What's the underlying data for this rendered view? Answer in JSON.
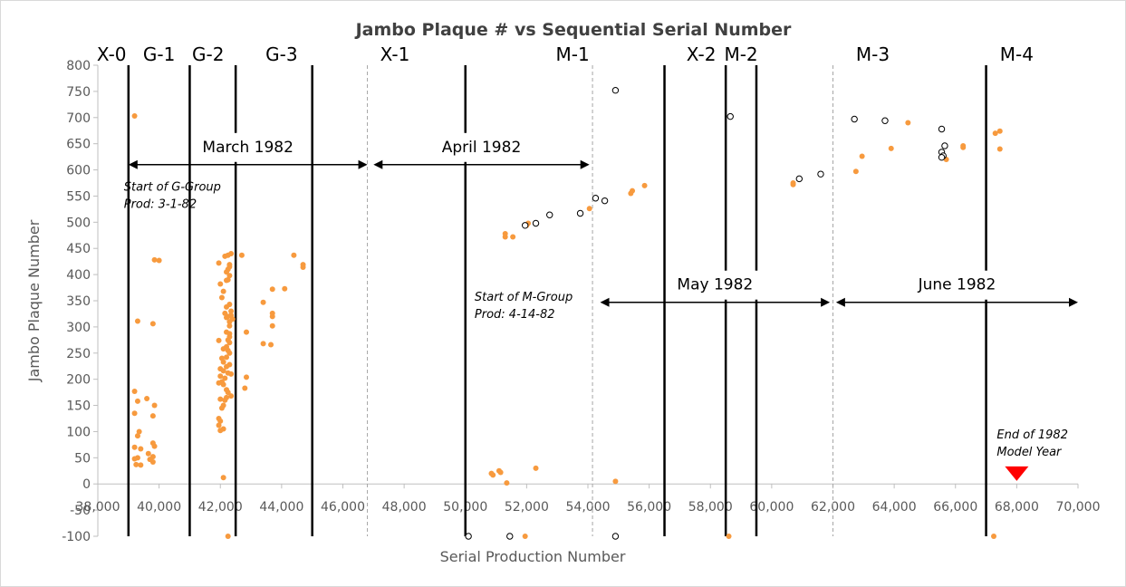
{
  "chart_data": {
    "type": "scatter",
    "title": "Jambo Plaque # vs Sequential Serial Number",
    "xlabel": "Serial Production Number",
    "ylabel": "Jambo Plaque Number",
    "xlim": [
      38000,
      70000
    ],
    "ylim": [
      -100,
      800
    ],
    "x_ticks": [
      38000,
      40000,
      42000,
      44000,
      46000,
      48000,
      50000,
      52000,
      54000,
      56000,
      58000,
      60000,
      62000,
      64000,
      66000,
      68000,
      70000
    ],
    "x_tick_labels": [
      "38,000",
      "40,000",
      "42,000",
      "44,000",
      "46,000",
      "48,000",
      "50,000",
      "52,000",
      "54,000",
      "56,000",
      "58,000",
      "60,000",
      "62,000",
      "64,000",
      "66,000",
      "68,000",
      "70,000"
    ],
    "y_ticks": [
      -100,
      -50,
      0,
      50,
      100,
      150,
      200,
      250,
      300,
      350,
      400,
      450,
      500,
      550,
      600,
      650,
      700,
      750,
      800
    ],
    "y_tick_labels": [
      "-100",
      "-50",
      "0",
      "50",
      "100",
      "150",
      "200",
      "250",
      "300",
      "350",
      "400",
      "450",
      "500",
      "550",
      "600",
      "650",
      "700",
      "750",
      "800"
    ],
    "grid": false,
    "series": [
      {
        "marker": "filled-circle",
        "color": "#f79a3e",
        "points": [
          [
            39200,
            703
          ],
          [
            39850,
            428
          ],
          [
            40000,
            427
          ],
          [
            39300,
            311
          ],
          [
            39800,
            306
          ],
          [
            39200,
            177
          ],
          [
            39300,
            158
          ],
          [
            39600,
            163
          ],
          [
            39850,
            150
          ],
          [
            39200,
            135
          ],
          [
            39800,
            130
          ],
          [
            39350,
            100
          ],
          [
            39300,
            92
          ],
          [
            39800,
            78
          ],
          [
            39850,
            72
          ],
          [
            39200,
            70
          ],
          [
            39400,
            67
          ],
          [
            39650,
            58
          ],
          [
            39800,
            52
          ],
          [
            39300,
            50
          ],
          [
            39200,
            48
          ],
          [
            39700,
            47
          ],
          [
            39800,
            42
          ],
          [
            39250,
            37
          ],
          [
            39400,
            36
          ],
          [
            42350,
            440
          ],
          [
            42250,
            437
          ],
          [
            42150,
            435
          ],
          [
            42300,
            419
          ],
          [
            42300,
            415
          ],
          [
            41950,
            422
          ],
          [
            42250,
            410
          ],
          [
            42200,
            405
          ],
          [
            42300,
            398
          ],
          [
            42250,
            390
          ],
          [
            42200,
            389
          ],
          [
            42000,
            382
          ],
          [
            42100,
            368
          ],
          [
            42050,
            356
          ],
          [
            42300,
            343
          ],
          [
            42200,
            338
          ],
          [
            42350,
            330
          ],
          [
            42150,
            326
          ],
          [
            42350,
            322
          ],
          [
            42250,
            320
          ],
          [
            42200,
            318
          ],
          [
            42400,
            315
          ],
          [
            42300,
            310
          ],
          [
            42300,
            302
          ],
          [
            42200,
            290
          ],
          [
            42300,
            287
          ],
          [
            42300,
            281
          ],
          [
            42250,
            275
          ],
          [
            41950,
            274
          ],
          [
            42300,
            270
          ],
          [
            42200,
            262
          ],
          [
            42100,
            258
          ],
          [
            42250,
            255
          ],
          [
            42300,
            250
          ],
          [
            42200,
            242
          ],
          [
            42050,
            240
          ],
          [
            42100,
            233
          ],
          [
            42300,
            228
          ],
          [
            42200,
            224
          ],
          [
            42000,
            220
          ],
          [
            42100,
            216
          ],
          [
            42250,
            212
          ],
          [
            42350,
            210
          ],
          [
            42000,
            206
          ],
          [
            42150,
            202
          ],
          [
            42050,
            195
          ],
          [
            41950,
            193
          ],
          [
            42100,
            190
          ],
          [
            42200,
            180
          ],
          [
            42250,
            175
          ],
          [
            42350,
            168
          ],
          [
            42200,
            165
          ],
          [
            42000,
            162
          ],
          [
            42150,
            160
          ],
          [
            42100,
            150
          ],
          [
            42050,
            145
          ],
          [
            41950,
            125
          ],
          [
            42000,
            120
          ],
          [
            41950,
            112
          ],
          [
            42100,
            105
          ],
          [
            42000,
            102
          ],
          [
            42100,
            12
          ],
          [
            42250,
            -100
          ],
          [
            42700,
            437
          ],
          [
            43400,
            347
          ],
          [
            43700,
            372
          ],
          [
            42850,
            290
          ],
          [
            43700,
            326
          ],
          [
            43700,
            320
          ],
          [
            43700,
            302
          ],
          [
            43400,
            268
          ],
          [
            43650,
            266
          ],
          [
            42850,
            204
          ],
          [
            42800,
            183
          ],
          [
            44100,
            373
          ],
          [
            44400,
            437
          ],
          [
            44700,
            419
          ],
          [
            44700,
            414
          ],
          [
            51300,
            478
          ],
          [
            51300,
            472
          ],
          [
            51550,
            472
          ],
          [
            52050,
            498
          ],
          [
            52000,
            494
          ],
          [
            54050,
            526
          ],
          [
            55400,
            555
          ],
          [
            55450,
            560
          ],
          [
            55850,
            570
          ],
          [
            50850,
            20
          ],
          [
            50900,
            17
          ],
          [
            51100,
            25
          ],
          [
            51150,
            22
          ],
          [
            51350,
            2
          ],
          [
            52300,
            30
          ],
          [
            54900,
            5
          ],
          [
            51950,
            -100
          ],
          [
            58600,
            -100
          ],
          [
            60700,
            572
          ],
          [
            60700,
            575
          ],
          [
            62750,
            597
          ],
          [
            62950,
            626
          ],
          [
            63900,
            641
          ],
          [
            64450,
            690
          ],
          [
            65700,
            620
          ],
          [
            66250,
            643
          ],
          [
            66250,
            646
          ],
          [
            67300,
            670
          ],
          [
            67450,
            674
          ],
          [
            67450,
            640
          ],
          [
            67250,
            -100
          ]
        ]
      },
      {
        "marker": "open-circle",
        "color": "#000000",
        "points": [
          [
            54900,
            752
          ],
          [
            58650,
            702
          ],
          [
            62700,
            697
          ],
          [
            63700,
            694
          ],
          [
            65550,
            678
          ],
          [
            65650,
            646
          ],
          [
            65550,
            634
          ],
          [
            65600,
            627
          ],
          [
            65550,
            624
          ],
          [
            61600,
            592
          ],
          [
            60900,
            583
          ],
          [
            54250,
            546
          ],
          [
            54550,
            541
          ],
          [
            53750,
            517
          ],
          [
            52750,
            514
          ],
          [
            52300,
            498
          ],
          [
            51950,
            494
          ],
          [
            50100,
            -100
          ],
          [
            51450,
            -100
          ],
          [
            54900,
            -100
          ]
        ]
      }
    ],
    "group_lines": [
      {
        "x": 39000,
        "style": "solid"
      },
      {
        "x": 41000,
        "style": "solid"
      },
      {
        "x": 42500,
        "style": "solid"
      },
      {
        "x": 45000,
        "style": "solid"
      },
      {
        "x": 46800,
        "style": "dashed"
      },
      {
        "x": 50000,
        "style": "solid"
      },
      {
        "x": 54150,
        "style": "dashed"
      },
      {
        "x": 56500,
        "style": "solid"
      },
      {
        "x": 58500,
        "style": "solid"
      },
      {
        "x": 59500,
        "style": "solid"
      },
      {
        "x": 62000,
        "style": "dashed"
      },
      {
        "x": 67000,
        "style": "solid"
      }
    ],
    "group_labels": [
      {
        "text": "X-0",
        "x": 38450
      },
      {
        "text": "G-1",
        "x": 40000
      },
      {
        "text": "G-2",
        "x": 41600
      },
      {
        "text": "G-3",
        "x": 44000
      },
      {
        "text": "X-1",
        "x": 47700
      },
      {
        "text": "M-1",
        "x": 53500
      },
      {
        "text": "X-2",
        "x": 57700
      },
      {
        "text": "M-2",
        "x": 59000
      },
      {
        "text": "M-3",
        "x": 63300
      },
      {
        "text": "M-4",
        "x": 68000
      }
    ],
    "month_ranges": [
      {
        "label": "March 1982",
        "x_start": 39000,
        "x_end": 46800,
        "y": 610
      },
      {
        "label": "April 1982",
        "x_start": 47000,
        "x_end": 54050,
        "y": 610
      },
      {
        "label": "May 1982",
        "x_start": 54400,
        "x_end": 61900,
        "y": 347
      },
      {
        "label": "June 1982",
        "x_start": 62100,
        "x_end": 70000,
        "y": 347
      }
    ],
    "annotations": [
      {
        "lines": [
          "Start of G-Group",
          "Prod: 3-1-82"
        ],
        "x": 38850,
        "y": 560
      },
      {
        "lines": [
          "Start of M-Group",
          "Prod: 4-14-82"
        ],
        "x": 50300,
        "y": 350
      },
      {
        "lines": [
          "End of 1982",
          "Model Year"
        ],
        "x": 67350,
        "y": 87
      }
    ],
    "marker_triangle": {
      "x": 68000,
      "y": 18,
      "color": "#ff0000"
    }
  }
}
